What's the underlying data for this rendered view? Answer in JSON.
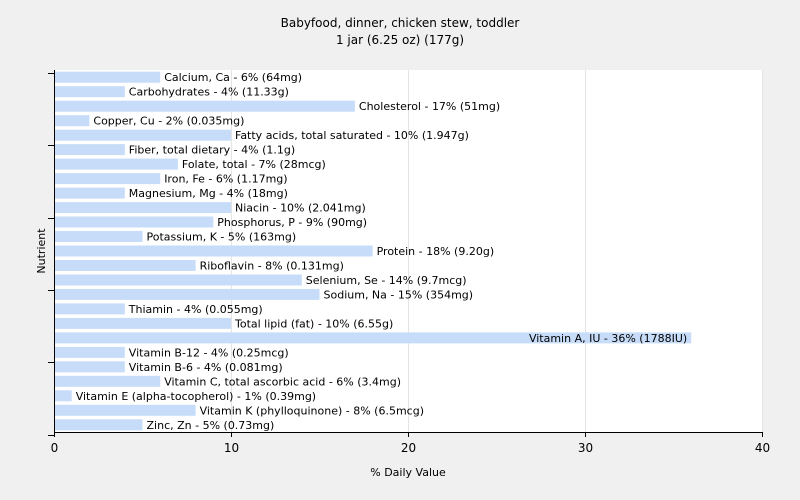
{
  "chart_data": {
    "type": "bar",
    "orientation": "horizontal",
    "title": "Babyfood, dinner, chicken stew, toddler",
    "subtitle": "1 jar (6.25 oz) (177g)",
    "xlabel": "% Daily Value",
    "ylabel": "Nutrient",
    "xlim": [
      0,
      40
    ],
    "xticks": [
      0,
      10,
      20,
      30,
      40
    ],
    "grid": true,
    "bar_color": "#c6dcf8",
    "categories": [
      "Calcium, Ca",
      "Carbohydrates",
      "Cholesterol",
      "Copper, Cu",
      "Fatty acids, total saturated",
      "Fiber, total dietary",
      "Folate, total",
      "Iron, Fe",
      "Magnesium, Mg",
      "Niacin",
      "Phosphorus, P",
      "Potassium, K",
      "Protein",
      "Riboflavin",
      "Selenium, Se",
      "Sodium, Na",
      "Thiamin",
      "Total lipid (fat)",
      "Vitamin A, IU",
      "Vitamin B-12",
      "Vitamin B-6",
      "Vitamin C, total ascorbic acid",
      "Vitamin E (alpha-tocopherol)",
      "Vitamin K (phylloquinone)",
      "Zinc, Zn"
    ],
    "values": [
      6,
      4,
      17,
      2,
      10,
      4,
      7,
      6,
      4,
      10,
      9,
      5,
      18,
      8,
      14,
      15,
      4,
      10,
      36,
      4,
      4,
      6,
      1,
      8,
      5
    ],
    "labels": [
      "Calcium, Ca - 6% (64mg)",
      "Carbohydrates - 4% (11.33g)",
      "Cholesterol - 17% (51mg)",
      "Copper, Cu - 2% (0.035mg)",
      "Fatty acids, total saturated - 10% (1.947g)",
      "Fiber, total dietary - 4% (1.1g)",
      "Folate, total - 7% (28mcg)",
      "Iron, Fe - 6% (1.17mg)",
      "Magnesium, Mg - 4% (18mg)",
      "Niacin - 10% (2.041mg)",
      "Phosphorus, P - 9% (90mg)",
      "Potassium, K - 5% (163mg)",
      "Protein - 18% (9.20g)",
      "Riboflavin - 8% (0.131mg)",
      "Selenium, Se - 14% (9.7mcg)",
      "Sodium, Na - 15% (354mg)",
      "Thiamin - 4% (0.055mg)",
      "Total lipid (fat) - 10% (6.55g)",
      "Vitamin A, IU - 36% (1788IU)",
      "Vitamin B-12 - 4% (0.25mcg)",
      "Vitamin B-6 - 4% (0.081mg)",
      "Vitamin C, total ascorbic acid - 6% (3.4mg)",
      "Vitamin E (alpha-tocopherol) - 1% (0.39mg)",
      "Vitamin K (phylloquinone) - 8% (6.5mcg)",
      "Zinc, Zn - 5% (0.73mg)"
    ]
  }
}
